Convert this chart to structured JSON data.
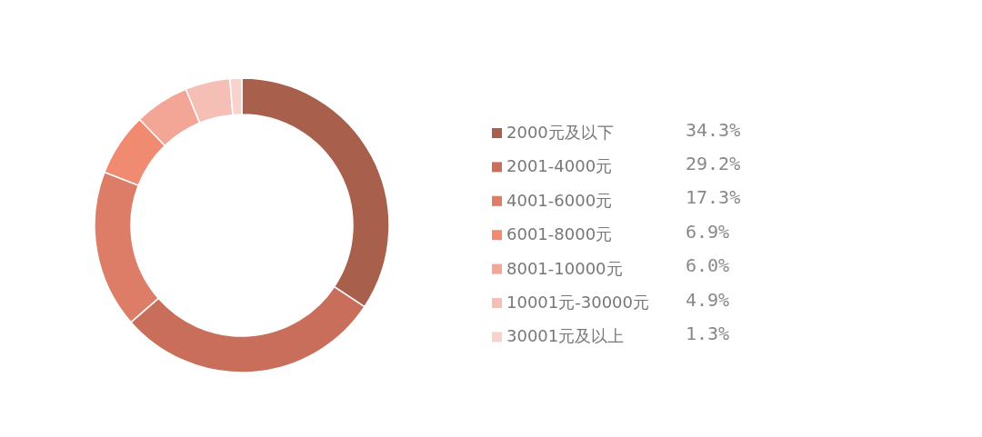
{
  "chart_data": {
    "type": "donut",
    "categories": [
      "2000元及以下",
      "2001-4000元",
      "4001-6000元",
      "6001-8000元",
      "8001-10000元",
      "10001元-30000元",
      "30001元及以上"
    ],
    "values": [
      34.3,
      29.2,
      17.3,
      6.9,
      6.0,
      4.9,
      1.3
    ],
    "value_labels": [
      "34.3%",
      "29.2%",
      "17.3%",
      "6.9%",
      "6.0%",
      "4.9%",
      "1.3%"
    ],
    "colors": [
      "#a8604c",
      "#c86e5a",
      "#dd7d68",
      "#f08a70",
      "#f3a596",
      "#f6bfb6",
      "#f8d3cd"
    ],
    "legend": "right"
  }
}
